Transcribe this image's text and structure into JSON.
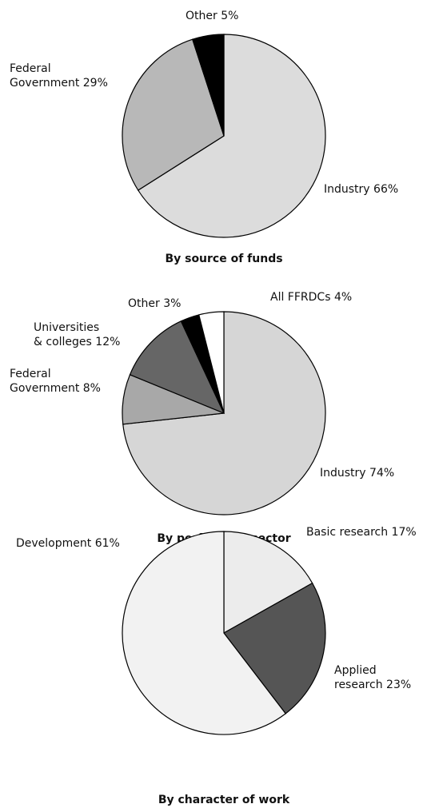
{
  "chart_data": [
    {
      "type": "pie",
      "title": "By source of funds",
      "categories": [
        "Industry",
        "Federal Government",
        "Other"
      ],
      "values": [
        66,
        29,
        5
      ],
      "value_labels": [
        "66%",
        "29%",
        "5%"
      ],
      "colors": [
        "#dcdcdc",
        "#b8b8b8",
        "#000000"
      ]
    },
    {
      "type": "pie",
      "title": "By performing sector",
      "categories": [
        "Industry",
        "Federal Government",
        "Universities & colleges",
        "Other",
        "All FFRDCs"
      ],
      "values": [
        74,
        8,
        12,
        3,
        4
      ],
      "value_labels": [
        "74%",
        "8%",
        "12%",
        "3%",
        "4%"
      ],
      "colors": [
        "#d6d6d6",
        "#a8a8a8",
        "#666666",
        "#000000",
        "#ffffff"
      ]
    },
    {
      "type": "pie",
      "title": "By character of work",
      "categories": [
        "Basic research",
        "Applied research",
        "Development"
      ],
      "values": [
        17,
        23,
        61
      ],
      "value_labels": [
        "17%",
        "23%",
        "61%"
      ],
      "colors": [
        "#ececec",
        "#555555",
        "#f2f2f2"
      ]
    }
  ]
}
